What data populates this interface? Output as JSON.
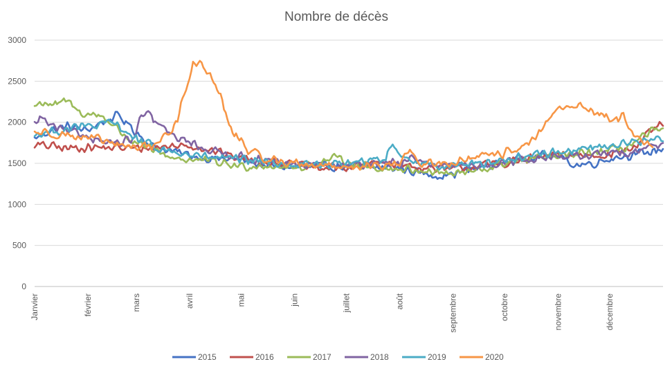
{
  "chart_data": {
    "type": "line",
    "title": "Nombre de décès",
    "xlabel": "",
    "ylabel": "",
    "ylim": [
      0,
      3000
    ],
    "yticks": [
      "0",
      "500",
      "1000",
      "1500",
      "2000",
      "2500",
      "3000"
    ],
    "months": [
      "Janvier",
      "février",
      "mars",
      "avril",
      "mai",
      "juin",
      "juillet",
      "août",
      "septembre",
      "octobre",
      "novembre",
      "décembre"
    ],
    "grid": "horizontal",
    "legend_position": "bottom",
    "days": 366,
    "series": [
      {
        "name": "2015",
        "color": "#4472C4",
        "anchors": [
          [
            1,
            1800
          ],
          [
            10,
            1900
          ],
          [
            20,
            1950
          ],
          [
            31,
            1900
          ],
          [
            40,
            2000
          ],
          [
            50,
            2080
          ],
          [
            59,
            1900
          ],
          [
            70,
            1700
          ],
          [
            80,
            1650
          ],
          [
            91,
            1600
          ],
          [
            100,
            1560
          ],
          [
            115,
            1550
          ],
          [
            121,
            1540
          ],
          [
            135,
            1470
          ],
          [
            152,
            1450
          ],
          [
            165,
            1460
          ],
          [
            182,
            1460
          ],
          [
            195,
            1450
          ],
          [
            213,
            1440
          ],
          [
            225,
            1380
          ],
          [
            238,
            1350
          ],
          [
            244,
            1370
          ],
          [
            260,
            1450
          ],
          [
            274,
            1520
          ],
          [
            290,
            1600
          ],
          [
            305,
            1580
          ],
          [
            315,
            1480
          ],
          [
            325,
            1500
          ],
          [
            335,
            1560
          ],
          [
            345,
            1600
          ],
          [
            355,
            1620
          ],
          [
            366,
            1680
          ]
        ]
      },
      {
        "name": "2016",
        "color": "#C0504D",
        "anchors": [
          [
            1,
            1720
          ],
          [
            10,
            1710
          ],
          [
            20,
            1680
          ],
          [
            31,
            1700
          ],
          [
            40,
            1690
          ],
          [
            50,
            1690
          ],
          [
            60,
            1680
          ],
          [
            70,
            1690
          ],
          [
            80,
            1710
          ],
          [
            91,
            1720
          ],
          [
            100,
            1680
          ],
          [
            110,
            1620
          ],
          [
            121,
            1560
          ],
          [
            135,
            1520
          ],
          [
            152,
            1480
          ],
          [
            165,
            1440
          ],
          [
            182,
            1450
          ],
          [
            195,
            1480
          ],
          [
            205,
            1520
          ],
          [
            213,
            1480
          ],
          [
            225,
            1450
          ],
          [
            240,
            1420
          ],
          [
            244,
            1430
          ],
          [
            260,
            1470
          ],
          [
            274,
            1500
          ],
          [
            290,
            1560
          ],
          [
            305,
            1600
          ],
          [
            320,
            1600
          ],
          [
            335,
            1610
          ],
          [
            350,
            1700
          ],
          [
            360,
            1900
          ],
          [
            366,
            2000
          ]
        ]
      },
      {
        "name": "2017",
        "color": "#9BBB59",
        "anchors": [
          [
            1,
            2200
          ],
          [
            7,
            2250
          ],
          [
            12,
            2200
          ],
          [
            20,
            2260
          ],
          [
            27,
            2120
          ],
          [
            31,
            2100
          ],
          [
            40,
            2080
          ],
          [
            45,
            2000
          ],
          [
            50,
            1900
          ],
          [
            59,
            1750
          ],
          [
            70,
            1650
          ],
          [
            80,
            1580
          ],
          [
            91,
            1540
          ],
          [
            100,
            1530
          ],
          [
            110,
            1500
          ],
          [
            121,
            1460
          ],
          [
            135,
            1480
          ],
          [
            152,
            1440
          ],
          [
            165,
            1500
          ],
          [
            175,
            1560
          ],
          [
            182,
            1520
          ],
          [
            195,
            1450
          ],
          [
            213,
            1430
          ],
          [
            225,
            1420
          ],
          [
            240,
            1380
          ],
          [
            244,
            1370
          ],
          [
            260,
            1410
          ],
          [
            274,
            1500
          ],
          [
            290,
            1550
          ],
          [
            305,
            1580
          ],
          [
            320,
            1620
          ],
          [
            335,
            1650
          ],
          [
            345,
            1700
          ],
          [
            355,
            1820
          ],
          [
            360,
            1900
          ],
          [
            366,
            1880
          ]
        ]
      },
      {
        "name": "2018",
        "color": "#8064A2",
        "anchors": [
          [
            1,
            1980
          ],
          [
            5,
            2060
          ],
          [
            10,
            1960
          ],
          [
            20,
            1880
          ],
          [
            31,
            1840
          ],
          [
            40,
            1780
          ],
          [
            50,
            1740
          ],
          [
            59,
            1800
          ],
          [
            63,
            2080
          ],
          [
            66,
            2100
          ],
          [
            70,
            2020
          ],
          [
            75,
            1950
          ],
          [
            80,
            1840
          ],
          [
            91,
            1760
          ],
          [
            100,
            1680
          ],
          [
            110,
            1620
          ],
          [
            121,
            1580
          ],
          [
            135,
            1520
          ],
          [
            152,
            1480
          ],
          [
            165,
            1480
          ],
          [
            182,
            1460
          ],
          [
            195,
            1500
          ],
          [
            205,
            1520
          ],
          [
            213,
            1480
          ],
          [
            220,
            1600
          ],
          [
            225,
            1500
          ],
          [
            240,
            1450
          ],
          [
            244,
            1460
          ],
          [
            260,
            1480
          ],
          [
            274,
            1520
          ],
          [
            290,
            1560
          ],
          [
            305,
            1580
          ],
          [
            320,
            1590
          ],
          [
            335,
            1620
          ],
          [
            345,
            1640
          ],
          [
            355,
            1680
          ],
          [
            366,
            1740
          ]
        ]
      },
      {
        "name": "2019",
        "color": "#4BACC6",
        "anchors": [
          [
            1,
            1850
          ],
          [
            10,
            1880
          ],
          [
            20,
            1920
          ],
          [
            31,
            1950
          ],
          [
            40,
            1960
          ],
          [
            45,
            2000
          ],
          [
            50,
            1960
          ],
          [
            59,
            1800
          ],
          [
            70,
            1700
          ],
          [
            80,
            1640
          ],
          [
            91,
            1600
          ],
          [
            100,
            1580
          ],
          [
            110,
            1560
          ],
          [
            121,
            1540
          ],
          [
            135,
            1520
          ],
          [
            152,
            1480
          ],
          [
            165,
            1480
          ],
          [
            182,
            1500
          ],
          [
            195,
            1520
          ],
          [
            205,
            1560
          ],
          [
            208,
            1760
          ],
          [
            212,
            1620
          ],
          [
            225,
            1500
          ],
          [
            240,
            1470
          ],
          [
            244,
            1480
          ],
          [
            260,
            1500
          ],
          [
            274,
            1540
          ],
          [
            290,
            1600
          ],
          [
            305,
            1640
          ],
          [
            320,
            1680
          ],
          [
            335,
            1720
          ],
          [
            345,
            1740
          ],
          [
            355,
            1780
          ],
          [
            366,
            1800
          ]
        ]
      },
      {
        "name": "2020",
        "color": "#F79646",
        "anchors": [
          [
            1,
            1880
          ],
          [
            10,
            1870
          ],
          [
            20,
            1850
          ],
          [
            31,
            1800
          ],
          [
            40,
            1780
          ],
          [
            50,
            1720
          ],
          [
            59,
            1700
          ],
          [
            70,
            1720
          ],
          [
            80,
            1880
          ],
          [
            85,
            2100
          ],
          [
            88,
            2350
          ],
          [
            91,
            2500
          ],
          [
            93,
            2720
          ],
          [
            96,
            2740
          ],
          [
            100,
            2650
          ],
          [
            105,
            2500
          ],
          [
            110,
            2250
          ],
          [
            115,
            1900
          ],
          [
            121,
            1780
          ],
          [
            125,
            1650
          ],
          [
            135,
            1560
          ],
          [
            142,
            1530
          ],
          [
            152,
            1500
          ],
          [
            165,
            1480
          ],
          [
            175,
            1470
          ],
          [
            182,
            1460
          ],
          [
            190,
            1460
          ],
          [
            200,
            1460
          ],
          [
            213,
            1480
          ],
          [
            218,
            1650
          ],
          [
            222,
            1600
          ],
          [
            226,
            1480
          ],
          [
            235,
            1500
          ],
          [
            244,
            1510
          ],
          [
            252,
            1540
          ],
          [
            258,
            1580
          ],
          [
            265,
            1580
          ],
          [
            274,
            1620
          ],
          [
            280,
            1680
          ],
          [
            285,
            1720
          ],
          [
            290,
            1760
          ],
          [
            296,
            1900
          ],
          [
            300,
            2050
          ],
          [
            305,
            2150
          ],
          [
            310,
            2200
          ],
          [
            315,
            2220
          ],
          [
            320,
            2180
          ],
          [
            326,
            2130
          ],
          [
            330,
            2100
          ],
          [
            335,
            2050
          ],
          [
            340,
            2020
          ],
          [
            343,
            2080
          ],
          [
            346,
            1900
          ],
          [
            350,
            1800
          ],
          [
            355,
            1740
          ],
          [
            360,
            1720
          ]
        ]
      }
    ]
  }
}
